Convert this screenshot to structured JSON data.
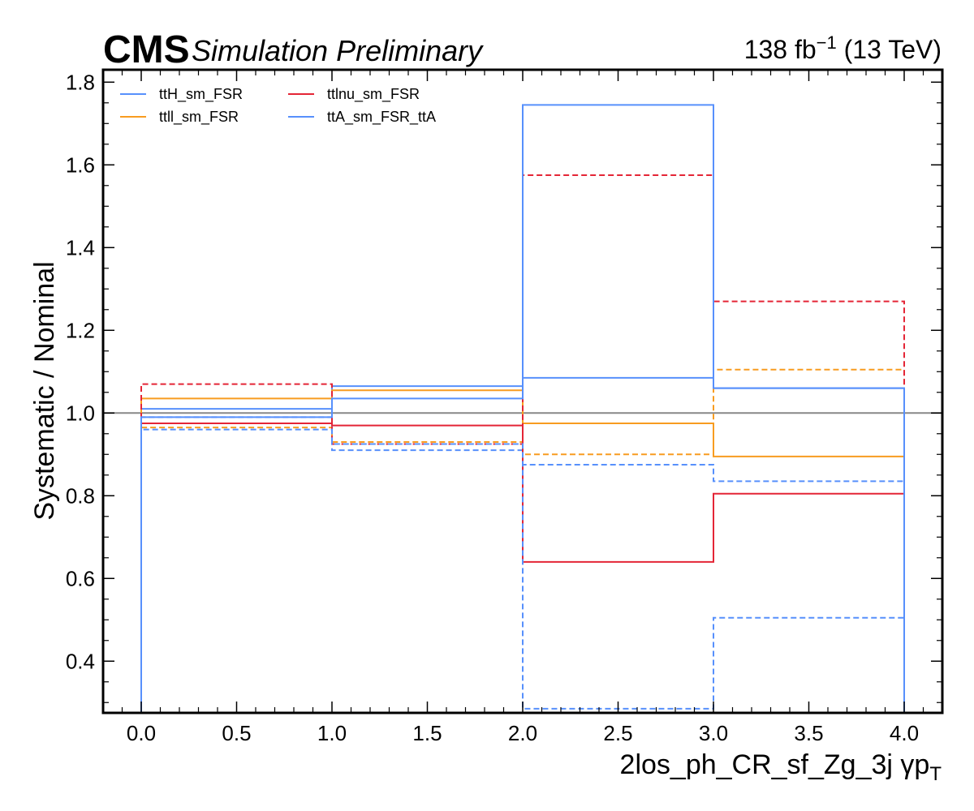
{
  "header": {
    "experiment": "CMS",
    "status": "Simulation Preliminary",
    "lumi_value": "138 fb",
    "lumi_exp": "−1",
    "energy": " (13 TeV)"
  },
  "chart_data": {
    "type": "line",
    "step": true,
    "xlabel": "2los_ph_CR_sf_Zg_3j   γp",
    "xlabel_sub": "T",
    "ylabel": "Systematic / Nominal",
    "xlim": [
      -0.2,
      4.2
    ],
    "ylim": [
      0.275,
      1.83
    ],
    "xticks": [
      0.0,
      0.5,
      1.0,
      1.5,
      2.0,
      2.5,
      3.0,
      3.5,
      4.0
    ],
    "xtick_labels": [
      "0.0",
      "0.5",
      "1.0",
      "1.5",
      "2.0",
      "2.5",
      "3.0",
      "3.5",
      "4.0"
    ],
    "yticks": [
      0.4,
      0.6,
      0.8,
      1.0,
      1.2,
      1.4,
      1.6,
      1.8
    ],
    "ytick_labels": [
      "0.4",
      "0.6",
      "0.8",
      "1.0",
      "1.2",
      "1.4",
      "1.6",
      "1.8"
    ],
    "bin_edges": [
      0,
      1,
      2,
      3,
      4
    ],
    "reference_line": 1.0,
    "legend_position": "upper-left",
    "series": [
      {
        "name": "ttH_sm_FSR",
        "color": "#5790fc",
        "style": "solid",
        "values": [
          1.01,
          1.065,
          1.085,
          1.06
        ]
      },
      {
        "name": "ttH_sm_FSR",
        "color": "#5790fc",
        "style": "dashed",
        "values": [
          0.99,
          0.91,
          0.875,
          0.835
        ]
      },
      {
        "name": "ttll_sm_FSR",
        "color": "#f89c20",
        "style": "solid",
        "values": [
          1.035,
          1.055,
          0.975,
          0.895
        ]
      },
      {
        "name": "ttll_sm_FSR",
        "color": "#f89c20",
        "style": "dashed",
        "values": [
          0.965,
          0.93,
          0.9,
          1.105
        ]
      },
      {
        "name": "ttlnu_sm_FSR",
        "color": "#e42536",
        "style": "solid",
        "values": [
          0.975,
          0.97,
          0.64,
          0.805
        ]
      },
      {
        "name": "ttlnu_sm_FSR",
        "color": "#e42536",
        "style": "dashed",
        "values": [
          1.07,
          0.925,
          1.575,
          1.27
        ]
      },
      {
        "name": "ttA_sm_FSR_ttA",
        "color": "#5790fc",
        "style": "solid",
        "values": [
          0.99,
          1.035,
          1.745,
          1.06
        ]
      },
      {
        "name": "ttA_sm_FSR_ttA",
        "color": "#5790fc",
        "style": "dashed",
        "values": [
          0.96,
          0.925,
          0.285,
          0.505
        ]
      }
    ],
    "legend": [
      {
        "label": "ttH_sm_FSR",
        "color": "#5790fc"
      },
      {
        "label": "ttll_sm_FSR",
        "color": "#f89c20"
      },
      {
        "label": "ttlnu_sm_FSR",
        "color": "#e42536"
      },
      {
        "label": "ttA_sm_FSR_ttA",
        "color": "#5790fc"
      }
    ]
  }
}
